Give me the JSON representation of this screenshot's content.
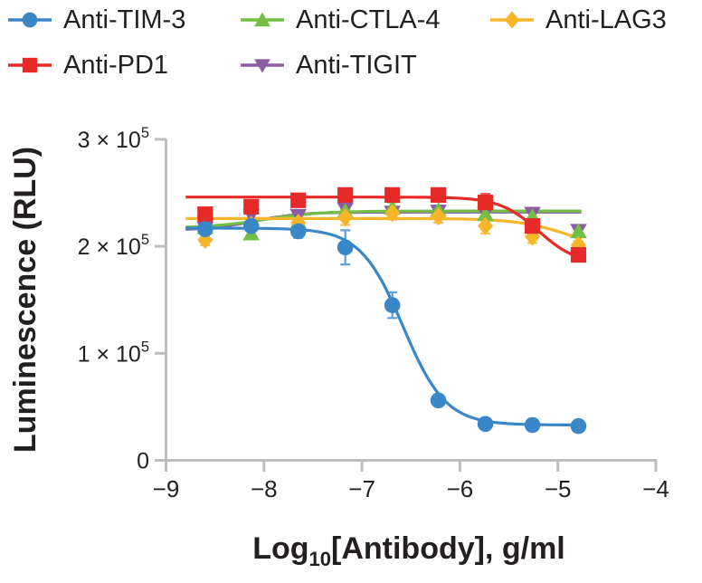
{
  "figure": {
    "background": "#ffffff",
    "text_color": "#231f20",
    "axis_color": "#bdbdbd"
  },
  "chart_data": {
    "type": "line",
    "title": "",
    "ylabel": "Luminescence (RLU)",
    "xlabel": {
      "pre": "Log",
      "sub": "10",
      "post": "[Antibody], g/ml"
    },
    "xlim": [
      -9,
      -4
    ],
    "ylim": [
      0,
      300000
    ],
    "grid": false,
    "legend_position": "top",
    "x_ticks": [
      {
        "label": "−9",
        "value": -9
      },
      {
        "label": "−8",
        "value": -8
      },
      {
        "label": "−7",
        "value": -7
      },
      {
        "label": "−6",
        "value": -6
      },
      {
        "label": "−5",
        "value": -5
      },
      {
        "label": "−4",
        "value": -4
      }
    ],
    "y_ticks": [
      {
        "base": "3 × 10",
        "sup": "5",
        "value": 300000
      },
      {
        "base": "2 × 10",
        "sup": "5",
        "value": 200000
      },
      {
        "base": "1 × 10",
        "sup": "5",
        "value": 100000
      },
      {
        "base": "0",
        "sup": "",
        "value": 0
      }
    ],
    "x_log10_antibody": [
      -8.6,
      -8.13,
      -7.65,
      -7.17,
      -6.69,
      -6.22,
      -5.74,
      -5.26,
      -4.79
    ],
    "series": [
      {
        "name": "Anti-TIM-3",
        "color": "#3a87c8",
        "marker": "circle",
        "values": [
          216000,
          219000,
          214000,
          199000,
          145000,
          56000,
          34000,
          33000,
          32000
        ],
        "errors": [
          5000,
          4000,
          6000,
          16000,
          12000,
          5000,
          2000,
          2000,
          2000
        ],
        "fit": {
          "left": 217000,
          "right": 33000,
          "logmid": -6.58,
          "hill": 2.0
        }
      },
      {
        "name": "Anti-PD1",
        "color": "#e52a28",
        "marker": "square",
        "values": [
          230000,
          237000,
          243000,
          248000,
          248000,
          248000,
          241000,
          219000,
          192000
        ],
        "errors": [
          6000,
          5000,
          5000,
          5000,
          6000,
          5000,
          8000,
          5000,
          4000
        ],
        "fit": {
          "left": 246000,
          "right": 183000,
          "logmid": -5.2,
          "hill": 2.2
        }
      },
      {
        "name": "Anti-CTLA-4",
        "color": "#72bf44",
        "marker": "triangle-up",
        "values": [
          218000,
          212000,
          223000,
          233000,
          236000,
          234000,
          230000,
          228000,
          214000
        ],
        "errors": [
          4000,
          3000,
          3000,
          4000,
          5000,
          4000,
          5000,
          4000,
          5000
        ],
        "fit": {
          "left": 217000,
          "right": 233000,
          "logmid": -8.0,
          "hill": 1.5
        }
      },
      {
        "name": "Anti-TIGIT",
        "color": "#8b5ba6",
        "marker": "triangle-down",
        "values": [
          217000,
          229000,
          229000,
          235000,
          232000,
          233000,
          231000,
          231000,
          215000
        ],
        "errors": [
          4000,
          3000,
          3000,
          3000,
          4000,
          4000,
          4000,
          5000,
          4000
        ],
        "fit": {
          "left": 215000,
          "right": 232000,
          "logmid": -8.1,
          "hill": 1.8
        }
      },
      {
        "name": "Anti-LAG3",
        "color": "#f7b52a",
        "marker": "diamond",
        "values": [
          206000,
          220000,
          222000,
          227000,
          231000,
          228000,
          219000,
          209000,
          201000
        ],
        "errors": [
          5000,
          4000,
          5000,
          7000,
          6000,
          6000,
          7000,
          6000,
          4000
        ],
        "fit": {
          "left": 226000,
          "right": 193000,
          "logmid": -4.85,
          "hill": 1.6
        }
      }
    ]
  }
}
